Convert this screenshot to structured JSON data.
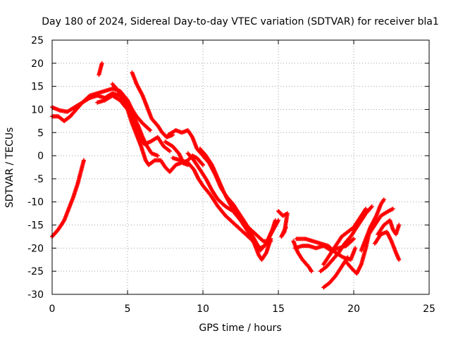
{
  "chart_data": {
    "type": "scatter",
    "title": "Day 180 of 2024, Sidereal Day-to-day VTEC variation (SDTVAR) for receiver bla1",
    "xlabel": "GPS time / hours",
    "ylabel": "SDTVAR / TECUs",
    "xlim": [
      0,
      25
    ],
    "ylim": [
      -30,
      25
    ],
    "xticks": [
      0,
      5,
      10,
      15,
      20,
      25
    ],
    "yticks": [
      -30,
      -25,
      -20,
      -15,
      -10,
      -5,
      0,
      5,
      10,
      15,
      20,
      25
    ],
    "grid": true,
    "marker": "+",
    "marker_color": "#ff0000",
    "series": [
      {
        "name": "s1",
        "points": [
          [
            0.0,
            10.5
          ],
          [
            0.5,
            9.8
          ],
          [
            1.0,
            9.5
          ],
          [
            1.5,
            10.5
          ],
          [
            2.0,
            11.5
          ],
          [
            2.5,
            13.0
          ],
          [
            3.0,
            13.5
          ],
          [
            3.5,
            14.0
          ],
          [
            4.0,
            14.5
          ],
          [
            4.5,
            14.0
          ],
          [
            5.0,
            12.0
          ],
          [
            5.3,
            10.0
          ],
          [
            5.6,
            8.5
          ],
          [
            6.0,
            7.0
          ],
          [
            6.5,
            5.5
          ]
        ]
      },
      {
        "name": "s2",
        "points": [
          [
            0.0,
            8.5
          ],
          [
            0.4,
            8.5
          ],
          [
            0.8,
            7.5
          ],
          [
            1.2,
            8.5
          ],
          [
            1.6,
            10.0
          ],
          [
            2.0,
            11.5
          ],
          [
            2.5,
            12.5
          ],
          [
            3.0,
            13.0
          ],
          [
            3.5,
            12.5
          ],
          [
            4.0,
            13.5
          ],
          [
            4.5,
            13.0
          ],
          [
            5.0,
            11.0
          ],
          [
            5.4,
            8.5
          ],
          [
            5.7,
            6.5
          ],
          [
            6.0,
            4.0
          ],
          [
            6.3,
            2.0
          ],
          [
            6.6,
            0.5
          ],
          [
            7.0,
            0.0
          ]
        ]
      },
      {
        "name": "s3",
        "points": [
          [
            3.0,
            11.5
          ],
          [
            3.5,
            12.0
          ],
          [
            4.0,
            13.0
          ],
          [
            4.5,
            12.0
          ],
          [
            5.0,
            10.0
          ],
          [
            5.3,
            7.0
          ],
          [
            5.6,
            4.5
          ],
          [
            5.9,
            2.0
          ],
          [
            6.2,
            -1.0
          ],
          [
            6.4,
            -2.0
          ],
          [
            6.8,
            -1.0
          ],
          [
            7.2,
            -1.0
          ],
          [
            7.5,
            -2.5
          ],
          [
            7.8,
            -3.5
          ],
          [
            8.2,
            -2.0
          ],
          [
            8.6,
            -1.5
          ],
          [
            9.0,
            -2.0
          ]
        ]
      },
      {
        "name": "s4",
        "points": [
          [
            4.0,
            15.5
          ],
          [
            4.4,
            14.0
          ],
          [
            4.8,
            12.0
          ],
          [
            5.2,
            9.0
          ],
          [
            5.5,
            6.5
          ],
          [
            5.8,
            4.5
          ],
          [
            6.1,
            2.5
          ],
          [
            6.5,
            3.0
          ],
          [
            7.0,
            4.0
          ],
          [
            7.4,
            2.0
          ],
          [
            7.8,
            1.0
          ]
        ]
      },
      {
        "name": "s5",
        "points": [
          [
            5.3,
            18.0
          ],
          [
            5.6,
            15.5
          ],
          [
            6.0,
            13.0
          ],
          [
            6.3,
            10.5
          ],
          [
            6.6,
            8.0
          ],
          [
            7.0,
            6.5
          ],
          [
            7.3,
            5.0
          ],
          [
            7.6,
            4.0
          ],
          [
            8.0,
            4.5
          ]
        ]
      },
      {
        "name": "s6",
        "points": [
          [
            7.5,
            3.0
          ],
          [
            8.0,
            2.0
          ],
          [
            8.4,
            0.5
          ],
          [
            8.7,
            -1.5
          ],
          [
            9.0,
            -1.0
          ],
          [
            9.3,
            0.0
          ],
          [
            9.6,
            -0.5
          ],
          [
            10.0,
            -2.0
          ]
        ]
      },
      {
        "name": "s7",
        "points": [
          [
            7.7,
            4.5
          ],
          [
            8.2,
            5.5
          ],
          [
            8.6,
            5.0
          ],
          [
            9.0,
            5.5
          ],
          [
            9.3,
            4.0
          ],
          [
            9.6,
            1.5
          ],
          [
            10.0,
            0.0
          ],
          [
            10.4,
            -1.5
          ],
          [
            10.8,
            -4.0
          ],
          [
            11.2,
            -7.0
          ],
          [
            11.6,
            -9.0
          ],
          [
            12.0,
            -10.5
          ],
          [
            12.5,
            -13.0
          ],
          [
            13.0,
            -15.5
          ],
          [
            13.5,
            -17.0
          ],
          [
            14.0,
            -18.5
          ],
          [
            14.5,
            -18.5
          ]
        ]
      },
      {
        "name": "s8",
        "points": [
          [
            8.0,
            -0.5
          ],
          [
            8.5,
            -1.0
          ],
          [
            9.0,
            -1.5
          ],
          [
            9.4,
            -3.0
          ],
          [
            9.7,
            -5.0
          ],
          [
            10.0,
            -6.5
          ],
          [
            10.5,
            -8.5
          ],
          [
            11.0,
            -11.0
          ],
          [
            11.5,
            -13.0
          ],
          [
            12.0,
            -14.5
          ],
          [
            12.5,
            -16.0
          ],
          [
            13.0,
            -17.5
          ],
          [
            13.5,
            -19.0
          ],
          [
            13.8,
            -20.0
          ],
          [
            14.1,
            -19.5
          ],
          [
            14.5,
            -17.0
          ],
          [
            15.0,
            -14.0
          ]
        ]
      },
      {
        "name": "s9",
        "points": [
          [
            9.0,
            0.5
          ],
          [
            9.4,
            -1.0
          ],
          [
            9.8,
            -3.0
          ],
          [
            10.2,
            -5.0
          ],
          [
            10.6,
            -7.5
          ],
          [
            11.0,
            -9.5
          ],
          [
            11.5,
            -11.0
          ],
          [
            12.0,
            -12.0
          ],
          [
            12.5,
            -14.0
          ],
          [
            13.0,
            -16.0
          ],
          [
            13.4,
            -18.0
          ],
          [
            13.8,
            -20.5
          ],
          [
            14.2,
            -19.0
          ],
          [
            14.6,
            -16.0
          ],
          [
            14.8,
            -14.0
          ]
        ]
      },
      {
        "name": "s10",
        "points": [
          [
            9.8,
            1.5
          ],
          [
            10.2,
            0.0
          ],
          [
            10.6,
            -2.0
          ],
          [
            11.0,
            -5.0
          ],
          [
            11.4,
            -8.0
          ],
          [
            11.8,
            -10.5
          ],
          [
            12.2,
            -12.5
          ],
          [
            12.6,
            -14.5
          ],
          [
            13.0,
            -16.5
          ],
          [
            13.4,
            -19.0
          ],
          [
            13.7,
            -21.5
          ],
          [
            13.9,
            -22.5
          ],
          [
            14.2,
            -21.0
          ],
          [
            14.5,
            -18.0
          ]
        ]
      },
      {
        "name": "s11",
        "points": [
          [
            15.0,
            -12.0
          ],
          [
            15.3,
            -13.0
          ],
          [
            15.6,
            -12.5
          ],
          [
            15.4,
            -16.5
          ],
          [
            15.2,
            -17.5
          ],
          [
            15.5,
            -15.5
          ]
        ]
      },
      {
        "name": "s12",
        "points": [
          [
            16.0,
            -18.5
          ],
          [
            16.3,
            -21.0
          ],
          [
            16.6,
            -22.5
          ],
          [
            17.0,
            -24.0
          ],
          [
            17.2,
            -25.0
          ]
        ]
      },
      {
        "name": "s13",
        "points": [
          [
            16.1,
            -20.0
          ],
          [
            16.6,
            -19.5
          ],
          [
            17.0,
            -19.5
          ],
          [
            17.5,
            -20.0
          ],
          [
            18.0,
            -19.5
          ],
          [
            18.5,
            -20.5
          ],
          [
            19.0,
            -20.0
          ],
          [
            19.5,
            -19.5
          ],
          [
            20.0,
            -18.0
          ]
        ]
      },
      {
        "name": "s14",
        "points": [
          [
            16.2,
            -18.0
          ],
          [
            16.8,
            -18.0
          ],
          [
            17.3,
            -18.5
          ],
          [
            17.8,
            -19.0
          ],
          [
            18.3,
            -19.5
          ],
          [
            18.8,
            -21.0
          ],
          [
            19.3,
            -22.0
          ],
          [
            19.8,
            -22.5
          ],
          [
            20.1,
            -20.0
          ]
        ]
      },
      {
        "name": "s15",
        "points": [
          [
            17.8,
            -25.0
          ],
          [
            18.2,
            -24.0
          ],
          [
            18.6,
            -22.5
          ],
          [
            19.0,
            -21.0
          ],
          [
            19.4,
            -19.0
          ],
          [
            19.8,
            -17.5
          ],
          [
            20.1,
            -16.0
          ],
          [
            20.4,
            -14.5
          ],
          [
            20.8,
            -12.5
          ],
          [
            21.2,
            -11.0
          ]
        ]
      },
      {
        "name": "s16",
        "points": [
          [
            18.0,
            -23.5
          ],
          [
            18.4,
            -21.5
          ],
          [
            18.8,
            -19.5
          ],
          [
            19.2,
            -17.5
          ],
          [
            19.6,
            -16.5
          ],
          [
            20.0,
            -15.5
          ],
          [
            20.4,
            -13.5
          ],
          [
            20.8,
            -11.5
          ]
        ]
      },
      {
        "name": "s17",
        "points": [
          [
            18.0,
            -28.5
          ],
          [
            18.4,
            -27.5
          ],
          [
            18.8,
            -26.0
          ],
          [
            19.2,
            -24.0
          ],
          [
            19.6,
            -22.0
          ]
        ]
      },
      {
        "name": "s18",
        "points": [
          [
            19.5,
            -23.0
          ],
          [
            19.9,
            -24.5
          ],
          [
            20.2,
            -25.5
          ],
          [
            20.5,
            -23.5
          ],
          [
            20.8,
            -20.0
          ],
          [
            21.0,
            -17.0
          ],
          [
            21.4,
            -15.0
          ],
          [
            21.8,
            -13.0
          ],
          [
            22.3,
            -12.0
          ],
          [
            22.6,
            -11.5
          ]
        ]
      },
      {
        "name": "s19",
        "points": [
          [
            20.5,
            -20.5
          ],
          [
            20.8,
            -18.0
          ],
          [
            21.1,
            -15.5
          ],
          [
            21.5,
            -13.0
          ],
          [
            21.8,
            -10.5
          ],
          [
            22.0,
            -9.5
          ]
        ]
      },
      {
        "name": "s20",
        "points": [
          [
            21.6,
            -17.0
          ],
          [
            22.0,
            -15.0
          ],
          [
            22.4,
            -14.0
          ],
          [
            22.6,
            -16.0
          ],
          [
            22.8,
            -17.0
          ],
          [
            23.0,
            -15.0
          ]
        ]
      },
      {
        "name": "s21",
        "points": [
          [
            21.4,
            -19.0
          ],
          [
            21.8,
            -17.0
          ],
          [
            22.2,
            -16.5
          ],
          [
            22.5,
            -18.5
          ],
          [
            22.8,
            -21.0
          ],
          [
            23.0,
            -22.5
          ]
        ]
      },
      {
        "name": "s22",
        "points": [
          [
            0.0,
            -17.5
          ],
          [
            0.4,
            -16.0
          ],
          [
            0.8,
            -14.0
          ],
          [
            1.1,
            -11.5
          ],
          [
            1.4,
            -9.0
          ],
          [
            1.7,
            -6.0
          ],
          [
            1.9,
            -3.5
          ],
          [
            2.1,
            -1.0
          ]
        ]
      },
      {
        "name": "s23",
        "points": [
          [
            3.1,
            17.5
          ],
          [
            3.3,
            20.0
          ]
        ]
      }
    ]
  }
}
